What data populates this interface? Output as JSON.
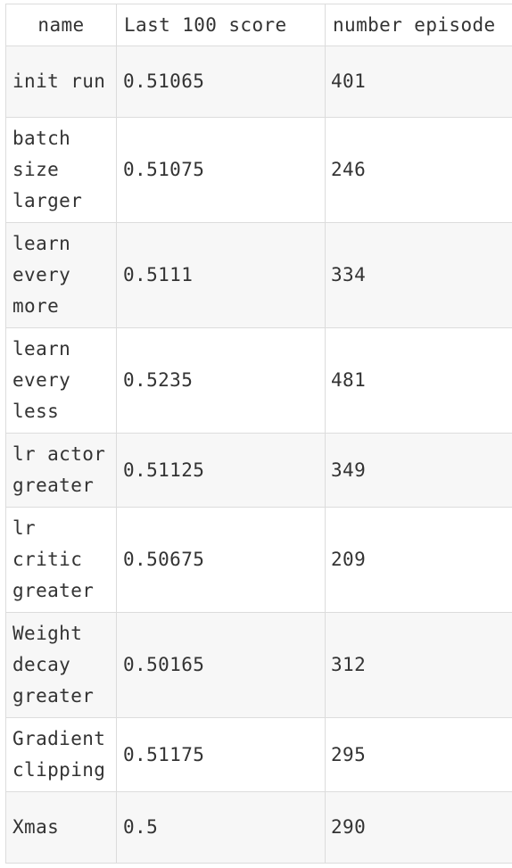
{
  "table": {
    "headers": [
      "name",
      "Last 100 score",
      "number episode"
    ],
    "rows": [
      {
        "name": "init run",
        "score": "0.51065",
        "episodes": "401",
        "h": 80
      },
      {
        "name": "batch\nsize\nlarger",
        "score": "0.51075",
        "episodes": "246",
        "h": 118
      },
      {
        "name": "learn\nevery\nmore",
        "score": "0.5111",
        "episodes": "334",
        "h": 118
      },
      {
        "name": "learn\nevery\nless",
        "score": "0.5235",
        "episodes": "481",
        "h": 118
      },
      {
        "name": "lr actor\ngreater",
        "score": "0.51125",
        "episodes": "349",
        "h": 83
      },
      {
        "name": "lr\ncritic\ngreater",
        "score": "0.50675",
        "episodes": "209",
        "h": 118
      },
      {
        "name": "Weight\ndecay\ngreater",
        "score": "0.50165",
        "episodes": "312",
        "h": 118
      },
      {
        "name": "Gradient\nclipping",
        "score": "0.51175",
        "episodes": "295",
        "h": 83
      },
      {
        "name": "Xmas",
        "score": "0.5",
        "episodes": "290",
        "h": 80
      }
    ]
  }
}
